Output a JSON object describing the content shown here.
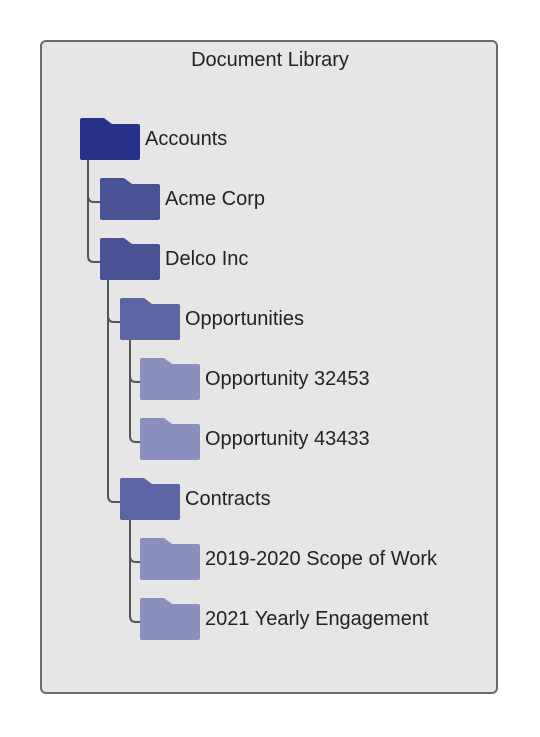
{
  "title": "Document Library",
  "colors": {
    "level0": "#27318a",
    "level1": "#4a5296",
    "level2": "#5c64a4",
    "level3": "#8a8fbd",
    "connector": "#555555",
    "panel_bg": "#e6e6e6"
  },
  "tree": {
    "root": "Accounts",
    "acme": "Acme Corp",
    "delco": "Delco Inc",
    "opportunities": "Opportunities",
    "opp1": "Opportunity 32453",
    "opp2": "Opportunity 43433",
    "contracts": "Contracts",
    "contract1": "2019-2020 Scope of Work",
    "contract2": "2021 Yearly Engagement"
  }
}
